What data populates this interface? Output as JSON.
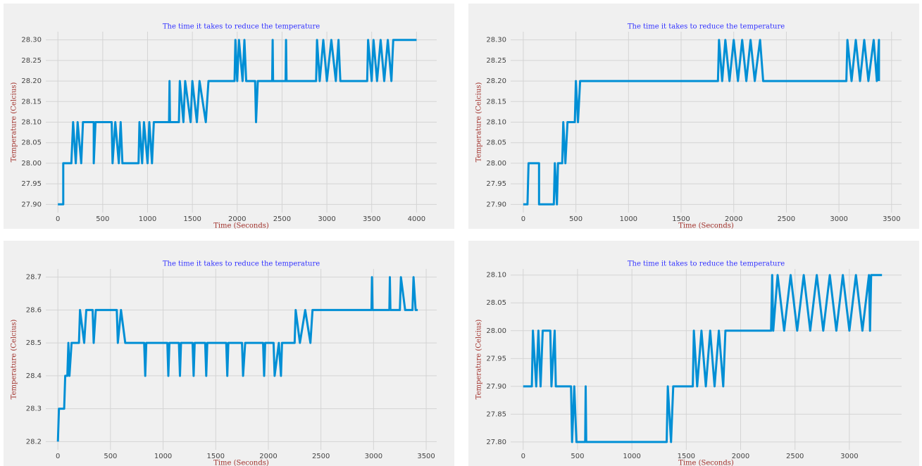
{
  "chart_data": [
    {
      "type": "line",
      "title": "The time it takes to reduce the temperature",
      "xlabel": "Time (Seconds)",
      "ylabel": "Temperature (Celcius)",
      "grid": true,
      "xlim": [
        -135,
        4225
      ],
      "ylim": [
        27.88,
        28.32
      ],
      "xticks": [
        0,
        500,
        1000,
        1500,
        2000,
        2500,
        3000,
        3500,
        4000
      ],
      "yticks": [
        {
          "value": 27.9,
          "label": "27.90"
        },
        {
          "value": 27.95,
          "label": "27.95"
        },
        {
          "value": 28.0,
          "label": "28.00"
        },
        {
          "value": 28.05,
          "label": "28.05"
        },
        {
          "value": 28.1,
          "label": "28.10"
        },
        {
          "value": 28.15,
          "label": "28.15"
        },
        {
          "value": 28.2,
          "label": "28.20"
        },
        {
          "value": 28.25,
          "label": "28.25"
        },
        {
          "value": 28.3,
          "label": "28.30"
        }
      ],
      "series": [
        {
          "color": "#008fd5",
          "x": [
            0,
            60,
            60,
            150,
            170,
            200,
            220,
            260,
            280,
            400,
            400,
            420,
            600,
            610,
            640,
            680,
            700,
            720,
            900,
            910,
            940,
            960,
            1000,
            1020,
            1050,
            1070,
            1240,
            1245,
            1250,
            1350,
            1360,
            1400,
            1420,
            1480,
            1500,
            1550,
            1580,
            1650,
            1680,
            1970,
            1980,
            2000,
            2020,
            2060,
            2080,
            2100,
            2200,
            2210,
            2230,
            2390,
            2395,
            2400,
            2540,
            2545,
            2550,
            2880,
            2890,
            2920,
            2960,
            3000,
            3050,
            3100,
            3130,
            3150,
            3450,
            3460,
            3500,
            3520,
            3560,
            3600,
            3640,
            3680,
            3720,
            3740,
            4000
          ],
          "values": [
            27.9,
            27.9,
            28.0,
            28.0,
            28.1,
            28.0,
            28.1,
            28.0,
            28.1,
            28.1,
            28.0,
            28.1,
            28.1,
            28.0,
            28.1,
            28.0,
            28.1,
            28.0,
            28.0,
            28.1,
            28.0,
            28.1,
            28.0,
            28.1,
            28.0,
            28.1,
            28.1,
            28.2,
            28.1,
            28.1,
            28.2,
            28.1,
            28.2,
            28.1,
            28.2,
            28.1,
            28.2,
            28.1,
            28.2,
            28.2,
            28.3,
            28.2,
            28.3,
            28.2,
            28.3,
            28.2,
            28.2,
            28.1,
            28.2,
            28.2,
            28.3,
            28.2,
            28.2,
            28.3,
            28.2,
            28.2,
            28.3,
            28.2,
            28.3,
            28.2,
            28.3,
            28.2,
            28.3,
            28.2,
            28.2,
            28.3,
            28.2,
            28.3,
            28.2,
            28.3,
            28.2,
            28.3,
            28.2,
            28.3,
            28.3
          ]
        }
      ]
    },
    {
      "type": "line",
      "title": "The time it takes to reduce the temperature",
      "xlabel": "Time (Seconds)",
      "ylabel": "Temperature (Celcius)",
      "grid": true,
      "xlim": [
        -120,
        3595
      ],
      "ylim": [
        27.88,
        28.32
      ],
      "xticks": [
        0,
        500,
        1000,
        1500,
        2000,
        2500,
        3000,
        3500
      ],
      "yticks": [
        {
          "value": 27.9,
          "label": "27.90"
        },
        {
          "value": 27.95,
          "label": "27.95"
        },
        {
          "value": 28.0,
          "label": "28.00"
        },
        {
          "value": 28.05,
          "label": "28.05"
        },
        {
          "value": 28.1,
          "label": "28.10"
        },
        {
          "value": 28.15,
          "label": "28.15"
        },
        {
          "value": 28.2,
          "label": "28.20"
        },
        {
          "value": 28.25,
          "label": "28.25"
        },
        {
          "value": 28.3,
          "label": "28.30"
        }
      ],
      "series": [
        {
          "color": "#008fd5",
          "x": [
            0,
            40,
            50,
            150,
            150,
            290,
            300,
            320,
            330,
            370,
            380,
            400,
            420,
            490,
            500,
            520,
            540,
            1850,
            1860,
            1890,
            1920,
            1960,
            2000,
            2040,
            2080,
            2120,
            2160,
            2200,
            2250,
            2280,
            3070,
            3080,
            3120,
            3160,
            3200,
            3240,
            3280,
            3330,
            3360,
            3380,
            3380
          ],
          "values": [
            27.9,
            27.9,
            28.0,
            28.0,
            27.9,
            27.9,
            28.0,
            27.9,
            28.0,
            28.0,
            28.1,
            28.0,
            28.1,
            28.1,
            28.2,
            28.1,
            28.2,
            28.2,
            28.3,
            28.2,
            28.3,
            28.2,
            28.3,
            28.2,
            28.3,
            28.2,
            28.3,
            28.2,
            28.3,
            28.2,
            28.2,
            28.3,
            28.2,
            28.3,
            28.2,
            28.3,
            28.2,
            28.3,
            28.2,
            28.3,
            28.2
          ]
        }
      ]
    },
    {
      "type": "line",
      "title": "The time it takes to reduce the temperature",
      "xlabel": "Time (Seconds)",
      "ylabel": "Temperature (Celcius)",
      "grid": true,
      "xlim": [
        -115,
        3600
      ],
      "ylim": [
        28.175,
        28.725
      ],
      "xticks": [
        0,
        500,
        1000,
        1500,
        2000,
        2500,
        3000,
        3500
      ],
      "yticks": [
        28.2,
        28.3,
        28.4,
        28.5,
        28.6,
        28.7
      ],
      "series": [
        {
          "color": "#008fd5",
          "x": [
            0,
            10,
            60,
            70,
            90,
            100,
            110,
            130,
            200,
            210,
            250,
            270,
            330,
            340,
            360,
            560,
            570,
            600,
            640,
            820,
            830,
            840,
            1040,
            1050,
            1060,
            1150,
            1160,
            1170,
            1280,
            1290,
            1300,
            1400,
            1410,
            1420,
            1600,
            1610,
            1620,
            1750,
            1760,
            1780,
            1950,
            1960,
            1970,
            2050,
            2060,
            2100,
            2120,
            2130,
            2250,
            2260,
            2300,
            2350,
            2400,
            2420,
            2980,
            2985,
            2990,
            3150,
            3155,
            3160,
            3250,
            3260,
            3300,
            3370,
            3380,
            3400,
            3420
          ],
          "values": [
            28.2,
            28.3,
            28.3,
            28.4,
            28.4,
            28.5,
            28.4,
            28.5,
            28.5,
            28.6,
            28.5,
            28.6,
            28.6,
            28.5,
            28.6,
            28.6,
            28.5,
            28.6,
            28.5,
            28.5,
            28.4,
            28.5,
            28.5,
            28.4,
            28.5,
            28.5,
            28.4,
            28.5,
            28.5,
            28.4,
            28.5,
            28.5,
            28.4,
            28.5,
            28.5,
            28.4,
            28.5,
            28.5,
            28.4,
            28.5,
            28.5,
            28.4,
            28.5,
            28.5,
            28.4,
            28.5,
            28.4,
            28.5,
            28.5,
            28.6,
            28.5,
            28.6,
            28.5,
            28.6,
            28.6,
            28.7,
            28.6,
            28.6,
            28.7,
            28.6,
            28.6,
            28.7,
            28.6,
            28.6,
            28.7,
            28.6,
            28.6
          ]
        }
      ]
    },
    {
      "type": "line",
      "title": "The time it takes to reduce the temperature",
      "xlabel": "Time (Seconds)",
      "ylabel": "Temperature (Celcius)",
      "grid": true,
      "xlim": [
        -115,
        3480
      ],
      "ylim": [
        27.786,
        28.111
      ],
      "xticks": [
        0,
        500,
        1000,
        1500,
        2000,
        2500,
        3000
      ],
      "yticks": [
        {
          "value": 27.8,
          "label": "27.80"
        },
        {
          "value": 27.85,
          "label": "27.85"
        },
        {
          "value": 27.9,
          "label": "27.90"
        },
        {
          "value": 27.95,
          "label": "27.95"
        },
        {
          "value": 28.0,
          "label": "28.00"
        },
        {
          "value": 28.05,
          "label": "28.05"
        },
        {
          "value": 28.1,
          "label": "28.10"
        }
      ],
      "series": [
        {
          "color": "#008fd5",
          "x": [
            0,
            80,
            90,
            120,
            140,
            160,
            180,
            250,
            260,
            290,
            300,
            440,
            450,
            470,
            490,
            570,
            575,
            580,
            1320,
            1330,
            1360,
            1380,
            1560,
            1570,
            1600,
            1640,
            1680,
            1720,
            1760,
            1800,
            1840,
            1860,
            2280,
            2290,
            2300,
            2340,
            2400,
            2460,
            2520,
            2580,
            2640,
            2700,
            2760,
            2820,
            2880,
            2940,
            3000,
            3060,
            3120,
            3180,
            3190,
            3200,
            3300
          ],
          "values": [
            27.9,
            27.9,
            28.0,
            27.9,
            28.0,
            27.9,
            28.0,
            28.0,
            27.9,
            28.0,
            27.9,
            27.9,
            27.8,
            27.9,
            27.8,
            27.8,
            27.9,
            27.8,
            27.8,
            27.9,
            27.8,
            27.9,
            27.9,
            28.0,
            27.9,
            28.0,
            27.9,
            28.0,
            27.9,
            28.0,
            27.9,
            28.0,
            28.0,
            28.1,
            28.0,
            28.1,
            28.0,
            28.1,
            28.0,
            28.1,
            28.0,
            28.1,
            28.0,
            28.1,
            28.0,
            28.1,
            28.0,
            28.1,
            28.0,
            28.1,
            28.0,
            28.1,
            28.1
          ]
        }
      ]
    }
  ]
}
